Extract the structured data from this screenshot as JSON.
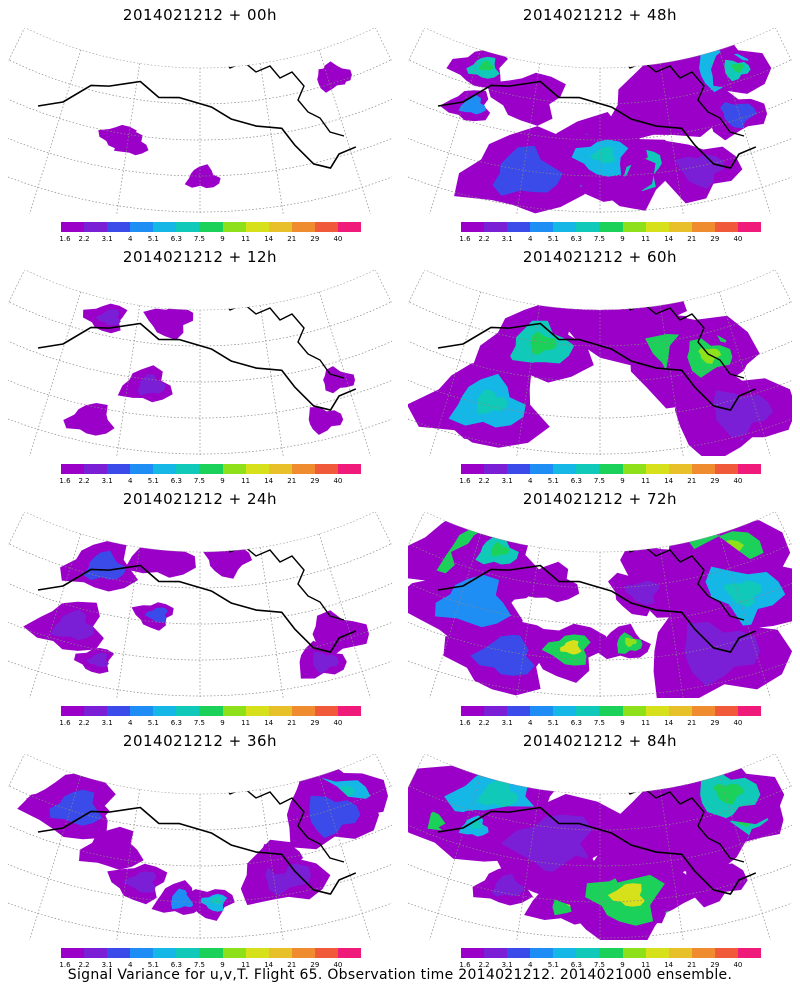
{
  "panels": [
    {
      "title": "2014021212 + 00h",
      "intensity": 0.05
    },
    {
      "title": "2014021212 + 48h",
      "intensity": 0.75
    },
    {
      "title": "2014021212 + 12h",
      "intensity": 0.18
    },
    {
      "title": "2014021212 + 60h",
      "intensity": 0.85
    },
    {
      "title": "2014021212 + 24h",
      "intensity": 0.35
    },
    {
      "title": "2014021212 + 72h",
      "intensity": 0.92
    },
    {
      "title": "2014021212 + 36h",
      "intensity": 0.55
    },
    {
      "title": "2014021212 + 84h",
      "intensity": 1.0
    }
  ],
  "colorbar": {
    "labels": [
      "1.6",
      "2.2",
      "3.1",
      "4",
      "5.1",
      "6.3",
      "7.5",
      "9",
      "11",
      "14",
      "21",
      "29",
      "40"
    ],
    "colors": [
      "#9b00c8",
      "#7a1fd6",
      "#3a4bea",
      "#1e8ef5",
      "#14b7e6",
      "#10c9b8",
      "#1bd15a",
      "#8ee01b",
      "#d6e01b",
      "#e8c12a",
      "#f08c30",
      "#f05a3a",
      "#f01a7a"
    ]
  },
  "footer": "Signal Variance for u,v,T. Flight 65. Observation time 2014021212. 2014021000 ensemble."
}
